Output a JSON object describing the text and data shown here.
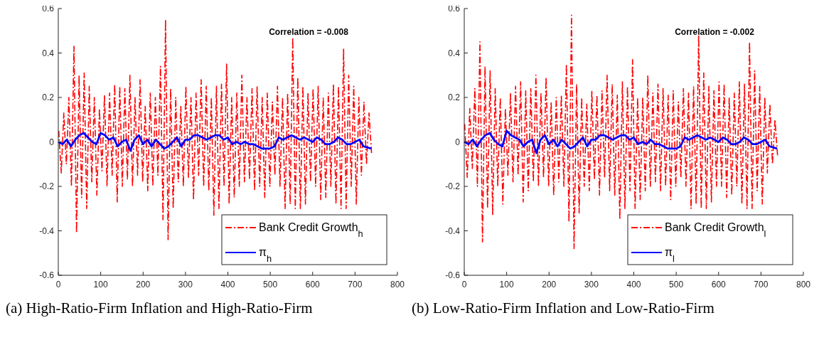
{
  "chart_data": [
    {
      "type": "line",
      "title": "(a) High-Ratio-Firm Inflation and High-Ratio-Firm",
      "xlim": [
        0,
        800
      ],
      "xticks": [
        0,
        100,
        200,
        300,
        400,
        500,
        600,
        700,
        800
      ],
      "ylim": [
        -0.6,
        0.6
      ],
      "yticks": [
        -0.6,
        -0.4,
        -0.2,
        0,
        0.2,
        0.4,
        0.6
      ],
      "legend": "bottom right",
      "grid": false,
      "annotations": [
        "Correlation = -0.008"
      ],
      "series": [
        {
          "name": "Bank Credit Growth$_{h}$",
          "color": "#ff0000",
          "line_style": "dashed",
          "x": [
            1,
            7,
            13,
            19,
            25,
            31,
            37,
            43,
            49,
            55,
            61,
            67,
            73,
            79,
            85,
            91,
            97,
            103,
            109,
            115,
            121,
            127,
            133,
            139,
            145,
            151,
            157,
            163,
            169,
            175,
            181,
            187,
            193,
            199,
            205,
            211,
            217,
            223,
            229,
            235,
            241,
            247,
            253,
            259,
            265,
            271,
            277,
            283,
            289,
            295,
            301,
            307,
            313,
            319,
            325,
            331,
            337,
            343,
            349,
            355,
            361,
            367,
            373,
            379,
            385,
            391,
            397,
            403,
            409,
            415,
            421,
            427,
            433,
            439,
            445,
            451,
            457,
            463,
            469,
            475,
            481,
            487,
            493,
            499,
            505,
            511,
            517,
            523,
            529,
            535,
            541,
            547,
            553,
            559,
            565,
            571,
            577,
            583,
            589,
            595,
            601,
            607,
            613,
            619,
            625,
            631,
            637,
            643,
            649,
            655,
            661,
            667,
            673,
            679,
            685,
            691,
            697,
            703,
            709,
            715,
            721,
            727,
            733,
            739
          ],
          "values": [
            0.05,
            -0.14,
            0.13,
            -0.1,
            0.2,
            -0.2,
            0.43,
            -0.41,
            0.3,
            -0.25,
            0.31,
            -0.3,
            0.25,
            -0.18,
            0.2,
            -0.24,
            0.15,
            -0.13,
            0.21,
            -0.2,
            0.22,
            -0.15,
            0.26,
            -0.27,
            0.25,
            -0.2,
            0.24,
            -0.17,
            0.3,
            -0.2,
            0.2,
            -0.15,
            0.28,
            -0.18,
            0.16,
            -0.22,
            0.22,
            -0.2,
            0.2,
            -0.15,
            0.34,
            -0.35,
            0.55,
            -0.44,
            0.24,
            -0.3,
            0.2,
            -0.18,
            0.16,
            -0.2,
            0.25,
            -0.16,
            0.2,
            -0.26,
            0.22,
            -0.15,
            0.28,
            -0.2,
            0.25,
            -0.22,
            0.2,
            -0.33,
            0.25,
            -0.3,
            0.26,
            -0.2,
            0.35,
            -0.28,
            0.2,
            -0.25,
            0.22,
            -0.2,
            0.3,
            -0.18,
            0.2,
            -0.17,
            0.24,
            -0.22,
            0.25,
            -0.2,
            0.2,
            -0.25,
            0.22,
            -0.2,
            0.18,
            -0.15,
            0.25,
            -0.2,
            0.2,
            -0.3,
            0.22,
            -0.28,
            0.47,
            -0.3,
            0.29,
            -0.3,
            0.25,
            -0.28,
            0.22,
            -0.18,
            0.24,
            -0.2,
            0.25,
            -0.26,
            0.2,
            -0.25,
            0.22,
            -0.2,
            0.26,
            -0.28,
            0.25,
            -0.3,
            0.42,
            -0.3,
            0.3,
            -0.2,
            0.25,
            -0.28,
            0.2,
            -0.15,
            0.18,
            -0.1,
            0.13,
            -0.05
          ]
        },
        {
          "name": "π$_{h}$",
          "color": "#0000ff",
          "line_style": "solid",
          "x": [
            0,
            10,
            20,
            30,
            40,
            50,
            60,
            70,
            80,
            90,
            100,
            110,
            120,
            130,
            140,
            150,
            160,
            170,
            180,
            190,
            200,
            210,
            220,
            230,
            240,
            250,
            260,
            270,
            280,
            290,
            300,
            310,
            320,
            330,
            340,
            350,
            360,
            370,
            380,
            390,
            400,
            410,
            420,
            430,
            440,
            450,
            460,
            470,
            480,
            490,
            500,
            510,
            520,
            530,
            540,
            550,
            560,
            570,
            580,
            590,
            600,
            610,
            620,
            630,
            640,
            650,
            660,
            670,
            680,
            690,
            700,
            710,
            720,
            738
          ],
          "values": [
            0,
            -0.01,
            0.01,
            -0.02,
            0.01,
            0.03,
            0.04,
            0.02,
            0,
            -0.01,
            0.04,
            0.03,
            0.01,
            0.02,
            -0.02,
            0,
            0.01,
            -0.04,
            0.01,
            0.03,
            -0.01,
            0.01,
            -0.02,
            0.01,
            -0.01,
            -0.03,
            -0.02,
            0,
            0.02,
            -0.02,
            0.01,
            0.01,
            0.03,
            0.03,
            0.02,
            0.01,
            0.02,
            0.03,
            0.03,
            0.01,
            0.02,
            -0.01,
            0,
            -0.01,
            0,
            -0.01,
            -0.01,
            -0.02,
            -0.03,
            -0.03,
            -0.03,
            -0.02,
            0.02,
            0.01,
            0.02,
            0.03,
            0.02,
            0.01,
            0.02,
            0.01,
            0,
            0.02,
            0.01,
            -0.01,
            -0.01,
            0,
            0.02,
            0.01,
            -0.01,
            -0.01,
            0,
            0.01,
            -0.02,
            -0.03
          ]
        }
      ]
    },
    {
      "type": "line",
      "title": "(b) Low-Ratio-Firm Inflation and Low-Ratio-Firm",
      "xlim": [
        0,
        800
      ],
      "xticks": [
        0,
        100,
        200,
        300,
        400,
        500,
        600,
        700,
        800
      ],
      "ylim": [
        -0.6,
        0.6
      ],
      "yticks": [
        -0.6,
        -0.4,
        -0.2,
        0,
        0.2,
        0.4,
        0.6
      ],
      "legend": "bottom right",
      "grid": false,
      "annotations": [
        "Correlation = -0.002"
      ],
      "series": [
        {
          "name": "Bank Credit Growth$_{l}$",
          "color": "#ff0000",
          "line_style": "dashed",
          "x": [
            1,
            7,
            13,
            19,
            25,
            31,
            37,
            43,
            49,
            55,
            61,
            67,
            73,
            79,
            85,
            91,
            97,
            103,
            109,
            115,
            121,
            127,
            133,
            139,
            145,
            151,
            157,
            163,
            169,
            175,
            181,
            187,
            193,
            199,
            205,
            211,
            217,
            223,
            229,
            235,
            241,
            247,
            253,
            259,
            265,
            271,
            277,
            283,
            289,
            295,
            301,
            307,
            313,
            319,
            325,
            331,
            337,
            343,
            349,
            355,
            361,
            367,
            373,
            379,
            385,
            391,
            397,
            403,
            409,
            415,
            421,
            427,
            433,
            439,
            445,
            451,
            457,
            463,
            469,
            475,
            481,
            487,
            493,
            499,
            505,
            511,
            517,
            523,
            529,
            535,
            541,
            547,
            553,
            559,
            565,
            571,
            577,
            583,
            589,
            595,
            601,
            607,
            613,
            619,
            625,
            631,
            637,
            643,
            649,
            655,
            661,
            667,
            673,
            679,
            685,
            691,
            697,
            703,
            709,
            715,
            721,
            727,
            733,
            739
          ],
          "values": [
            0.08,
            -0.16,
            0.15,
            -0.12,
            0.24,
            -0.2,
            0.45,
            -0.45,
            0.34,
            -0.3,
            0.32,
            -0.33,
            0.24,
            -0.2,
            0.2,
            -0.28,
            0.15,
            -0.15,
            0.22,
            -0.18,
            0.25,
            -0.15,
            0.27,
            -0.27,
            0.23,
            -0.22,
            0.24,
            -0.18,
            0.3,
            -0.2,
            0.22,
            -0.16,
            0.29,
            -0.2,
            0.18,
            -0.24,
            0.2,
            -0.18,
            0.21,
            -0.2,
            0.35,
            -0.36,
            0.57,
            -0.48,
            0.26,
            -0.32,
            0.2,
            -0.2,
            0.17,
            -0.22,
            0.23,
            -0.17,
            0.21,
            -0.24,
            0.23,
            -0.16,
            0.3,
            -0.22,
            0.26,
            -0.24,
            0.21,
            -0.35,
            0.27,
            -0.3,
            0.25,
            -0.22,
            0.37,
            -0.3,
            0.2,
            -0.26,
            0.2,
            -0.22,
            0.3,
            -0.2,
            0.22,
            -0.18,
            0.26,
            -0.22,
            0.24,
            -0.2,
            0.21,
            -0.26,
            0.23,
            -0.2,
            0.18,
            -0.16,
            0.24,
            -0.2,
            0.22,
            -0.3,
            0.25,
            -0.28,
            0.48,
            -0.3,
            0.31,
            -0.3,
            0.25,
            -0.27,
            0.23,
            -0.2,
            0.27,
            -0.2,
            0.26,
            -0.25,
            0.2,
            -0.24,
            0.22,
            -0.2,
            0.27,
            -0.28,
            0.26,
            -0.3,
            0.45,
            -0.3,
            0.32,
            -0.22,
            0.25,
            -0.28,
            0.2,
            -0.14,
            0.17,
            -0.1,
            0.1,
            -0.06
          ]
        },
        {
          "name": "π$_{l}$",
          "color": "#0000ff",
          "line_style": "solid",
          "x": [
            0,
            10,
            20,
            30,
            40,
            50,
            60,
            70,
            80,
            90,
            100,
            110,
            120,
            130,
            140,
            150,
            160,
            170,
            180,
            190,
            200,
            210,
            220,
            230,
            240,
            250,
            260,
            270,
            280,
            290,
            300,
            310,
            320,
            330,
            340,
            350,
            360,
            370,
            380,
            390,
            400,
            410,
            420,
            430,
            440,
            450,
            460,
            470,
            480,
            490,
            500,
            510,
            520,
            530,
            540,
            550,
            560,
            570,
            580,
            590,
            600,
            610,
            620,
            630,
            640,
            650,
            660,
            670,
            680,
            690,
            700,
            710,
            720,
            738
          ],
          "values": [
            0,
            -0.01,
            0.01,
            -0.02,
            0.01,
            0.03,
            0.04,
            0.01,
            -0.01,
            -0.02,
            0.05,
            0.03,
            0.02,
            0.01,
            -0.02,
            0,
            0.01,
            -0.05,
            0.01,
            0.03,
            -0.01,
            0.01,
            -0.02,
            0.01,
            -0.01,
            -0.03,
            -0.02,
            0,
            0.02,
            -0.02,
            0.01,
            0.01,
            0.03,
            0.03,
            0.02,
            0.01,
            0.02,
            0.03,
            0.03,
            0.01,
            0.02,
            -0.01,
            0,
            -0.01,
            0.01,
            -0.01,
            -0.01,
            -0.02,
            -0.03,
            -0.03,
            -0.03,
            -0.02,
            0.02,
            0.01,
            0.02,
            0.03,
            0.02,
            0.01,
            0.02,
            0.01,
            0,
            0.02,
            0.01,
            -0.01,
            -0.01,
            0,
            0.02,
            0.01,
            -0.01,
            -0.01,
            0,
            0.01,
            -0.02,
            -0.03
          ]
        }
      ]
    }
  ]
}
